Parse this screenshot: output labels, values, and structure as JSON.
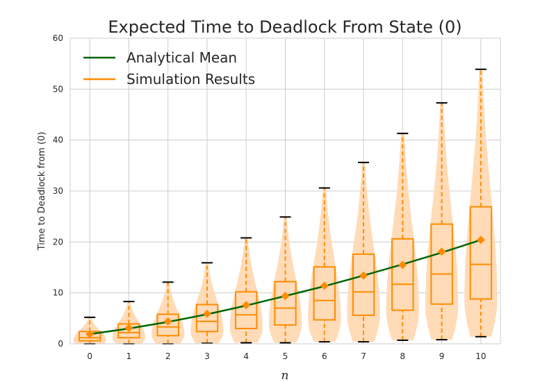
{
  "chart_data": {
    "type": "violin-box",
    "title": "Expected Time to Deadlock From State (0)",
    "xlabel": "n",
    "ylabel": "Time to Deadlock from (0)",
    "xlim": [
      -0.5,
      10.5
    ],
    "ylim": [
      0,
      60
    ],
    "x_ticks": [
      0,
      1,
      2,
      3,
      4,
      5,
      6,
      7,
      8,
      9,
      10
    ],
    "y_ticks": [
      0,
      10,
      20,
      30,
      40,
      50,
      60
    ],
    "grid": true,
    "legend_position": "top-left",
    "colors": {
      "analytical": "#006400",
      "simulation": "#ff8c00",
      "violin_fill": "#ffd9b3",
      "whisker_cap": "#000000",
      "grid": "#cccccc"
    },
    "series": [
      {
        "name": "Analytical Mean",
        "type": "line",
        "x": [
          0,
          1,
          2,
          3,
          4,
          5,
          6,
          7,
          8,
          9,
          10
        ],
        "values": [
          1.9,
          3.0,
          4.3,
          5.8,
          7.5,
          9.4,
          11.3,
          13.4,
          15.6,
          17.9,
          20.4
        ]
      },
      {
        "name": "Simulation Results",
        "type": "violin-box",
        "groups": [
          {
            "x": 0,
            "min": 0,
            "q1": 0.6,
            "median": 1.2,
            "q3": 2.4,
            "max": 5.2,
            "mean": 1.9
          },
          {
            "x": 1,
            "min": 0,
            "q1": 1.2,
            "median": 2.2,
            "q3": 3.9,
            "max": 8.3,
            "mean": 3.1
          },
          {
            "x": 2,
            "min": 0,
            "q1": 1.6,
            "median": 3.3,
            "q3": 5.8,
            "max": 12.1,
            "mean": 4.4
          },
          {
            "x": 3,
            "min": 0.1,
            "q1": 2.4,
            "median": 4.4,
            "q3": 7.7,
            "max": 15.9,
            "mean": 5.9
          },
          {
            "x": 4,
            "min": 0.2,
            "q1": 3.0,
            "median": 5.7,
            "q3": 10.2,
            "max": 20.8,
            "mean": 7.6
          },
          {
            "x": 5,
            "min": 0.2,
            "q1": 3.7,
            "median": 7.0,
            "q3": 12.2,
            "max": 24.9,
            "mean": 9.4
          },
          {
            "x": 6,
            "min": 0.4,
            "q1": 4.7,
            "median": 8.5,
            "q3": 15.1,
            "max": 30.6,
            "mean": 11.4
          },
          {
            "x": 7,
            "min": 0.4,
            "q1": 5.6,
            "median": 10.2,
            "q3": 17.6,
            "max": 35.6,
            "mean": 13.4
          },
          {
            "x": 8,
            "min": 0.7,
            "q1": 6.6,
            "median": 11.7,
            "q3": 20.6,
            "max": 41.3,
            "mean": 15.5
          },
          {
            "x": 9,
            "min": 0.8,
            "q1": 7.8,
            "median": 13.7,
            "q3": 23.5,
            "max": 47.3,
            "mean": 18.1
          },
          {
            "x": 10,
            "min": 1.4,
            "q1": 8.8,
            "median": 15.6,
            "q3": 26.9,
            "max": 53.9,
            "mean": 20.4
          }
        ]
      }
    ]
  }
}
